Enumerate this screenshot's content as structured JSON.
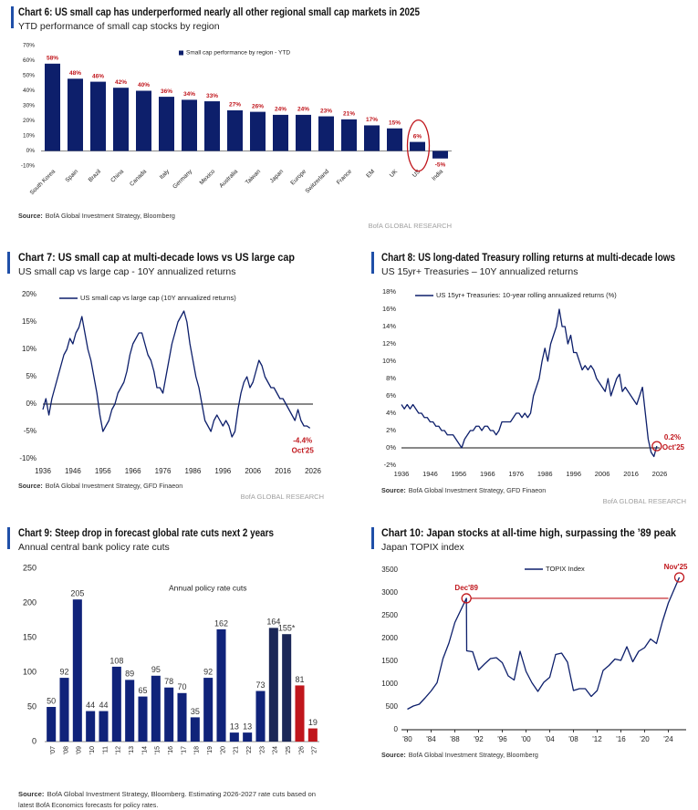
{
  "chart_data": [
    {
      "type": "bar",
      "title": "Chart 6: US small cap has underperformed nearly all other regional small cap markets in 2025",
      "subtitle": "YTD performance of small cap stocks by region",
      "categories": [
        "South Korea",
        "Spain",
        "Brazil",
        "China",
        "Canada",
        "Italy",
        "Germany",
        "Mexico",
        "Australia",
        "Taiwan",
        "Japan",
        "Europe",
        "Switzerland",
        "France",
        "EM",
        "UK",
        "US",
        "India"
      ],
      "series": [
        {
          "name": "Small cap performance by region - YTD",
          "color": "#0d1f6b",
          "label_color": "#c0161c",
          "values": [
            58,
            48,
            46,
            42,
            40,
            36,
            34,
            33,
            27,
            26,
            24,
            24,
            23,
            21,
            17,
            15,
            6,
            -5
          ],
          "value_labels": [
            "58%",
            "48%",
            "46%",
            "42%",
            "40%",
            "36%",
            "34%",
            "33%",
            "27%",
            "26%",
            "24%",
            "24%",
            "23%",
            "21%",
            "17%",
            "15%",
            "6%",
            "-5%"
          ]
        }
      ],
      "ylim": [
        -10,
        70
      ],
      "yticks": [
        {
          "value": -10,
          "label": "-10%"
        },
        {
          "value": 0,
          "label": "0%"
        },
        {
          "value": 10,
          "label": "10%"
        },
        {
          "value": 20,
          "label": "20%"
        },
        {
          "value": 30,
          "label": "30%"
        },
        {
          "value": 40,
          "label": "40%"
        },
        {
          "value": 50,
          "label": "50%"
        },
        {
          "value": 60,
          "label": "60%"
        },
        {
          "value": 70,
          "label": "70%"
        }
      ],
      "source_label": "Source:",
      "source": [
        "BofA Global Investment Strategy, Bloomberg"
      ],
      "footer": "BofA GLOBAL RESEARCH"
    },
    {
      "type": "line",
      "title": "Chart 7: US small cap at multi-decade lows vs US large cap",
      "subtitle": "US small cap vs large cap - 10Y annualized returns",
      "x": [
        1936,
        1937,
        1938,
        1939,
        1940,
        1941,
        1942,
        1943,
        1944,
        1945,
        1946,
        1947,
        1948,
        1949,
        1950,
        1951,
        1952,
        1953,
        1954,
        1955,
        1956,
        1957,
        1958,
        1959,
        1960,
        1961,
        1962,
        1963,
        1964,
        1965,
        1966,
        1967,
        1968,
        1969,
        1970,
        1971,
        1972,
        1973,
        1974,
        1975,
        1976,
        1977,
        1978,
        1979,
        1980,
        1981,
        1982,
        1983,
        1984,
        1985,
        1986,
        1987,
        1988,
        1989,
        1990,
        1991,
        1992,
        1993,
        1994,
        1995,
        1996,
        1997,
        1998,
        1999,
        2000,
        2001,
        2002,
        2003,
        2004,
        2005,
        2006,
        2007,
        2008,
        2009,
        2010,
        2011,
        2012,
        2013,
        2014,
        2015,
        2016,
        2017,
        2018,
        2019,
        2020,
        2021,
        2022,
        2023,
        2024,
        2025
      ],
      "series": [
        {
          "name": "US small cap vs large cap (10Y annualized returns)",
          "color": "#0d1f6b",
          "values": [
            -1,
            1,
            -2,
            1,
            3,
            5,
            7,
            9,
            10,
            12,
            11,
            13,
            14,
            16,
            13,
            10,
            8,
            5,
            2,
            -2,
            -5,
            -4,
            -3,
            -1,
            0,
            2,
            3,
            4,
            6,
            9,
            11,
            12,
            13,
            13,
            11,
            9,
            8,
            6,
            3,
            3,
            2,
            5,
            8,
            11,
            13,
            15,
            16,
            17,
            15,
            11,
            8,
            5,
            3,
            0,
            -3,
            -4,
            -5,
            -3,
            -2,
            -3,
            -4,
            -3,
            -4,
            -6,
            -5,
            -1,
            2,
            4,
            5,
            3,
            4,
            6,
            8,
            7,
            5,
            4,
            3,
            3,
            2,
            1,
            1,
            0,
            -1,
            -2,
            -3,
            -1,
            -3,
            -4,
            -4,
            -4.4
          ]
        }
      ],
      "xlim": [
        1936,
        2026
      ],
      "xticks": [
        1936,
        1946,
        1956,
        1966,
        1976,
        1986,
        1996,
        2006,
        2016,
        2026
      ],
      "ylim": [
        -10,
        20
      ],
      "yticks": [
        {
          "value": -10,
          "label": "-10%"
        },
        {
          "value": -5,
          "label": "-5%"
        },
        {
          "value": 0,
          "label": "0%"
        },
        {
          "value": 5,
          "label": "5%"
        },
        {
          "value": 10,
          "label": "10%"
        },
        {
          "value": 15,
          "label": "15%"
        },
        {
          "value": 20,
          "label": "20%"
        }
      ],
      "annotations": [
        "-4.4%",
        "Oct'25"
      ],
      "annotation_color": "#c0161c",
      "source_label": "Source:",
      "source": [
        "BofA Global Investment Strategy, GFD Finaeon"
      ],
      "footer": "BofA GLOBAL RESEARCH"
    },
    {
      "type": "line",
      "title": "Chart 8: US long-dated Treasury rolling returns at multi-decade lows",
      "subtitle": "US 15yr+ Treasuries – 10Y annualized returns",
      "x": [
        1936,
        1937,
        1938,
        1939,
        1940,
        1941,
        1942,
        1943,
        1944,
        1945,
        1946,
        1947,
        1948,
        1949,
        1950,
        1951,
        1952,
        1953,
        1954,
        1955,
        1956,
        1957,
        1958,
        1959,
        1960,
        1961,
        1962,
        1963,
        1964,
        1965,
        1966,
        1967,
        1968,
        1969,
        1970,
        1971,
        1972,
        1973,
        1974,
        1975,
        1976,
        1977,
        1978,
        1979,
        1980,
        1981,
        1982,
        1983,
        1984,
        1985,
        1986,
        1987,
        1988,
        1989,
        1990,
        1991,
        1992,
        1993,
        1994,
        1995,
        1996,
        1997,
        1998,
        1999,
        2000,
        2001,
        2002,
        2003,
        2004,
        2005,
        2006,
        2007,
        2008,
        2009,
        2010,
        2011,
        2012,
        2013,
        2014,
        2015,
        2016,
        2017,
        2018,
        2019,
        2020,
        2021,
        2022,
        2023,
        2024,
        2025
      ],
      "series": [
        {
          "name": "US 15yr+ Treasuries: 10-year rolling annualized returns (%)",
          "color": "#0d1f6b",
          "values": [
            5,
            4.5,
            5,
            4.5,
            5,
            4.5,
            4,
            4,
            3.5,
            3.5,
            3,
            3,
            2.5,
            2.5,
            2,
            2,
            1.5,
            1.5,
            1.5,
            1,
            0.5,
            0,
            1,
            1.5,
            2,
            2,
            2.5,
            2.5,
            2,
            2.5,
            2.5,
            2,
            2,
            1.5,
            2,
            3,
            3,
            3,
            3,
            3.5,
            4,
            4,
            3.5,
            4,
            3.5,
            4,
            6,
            7,
            8,
            10,
            11.5,
            10,
            12,
            13,
            14,
            16,
            14,
            14,
            12,
            13,
            11,
            11,
            10,
            9,
            9.5,
            9,
            9.5,
            9,
            8,
            7.5,
            7,
            6.5,
            8,
            6,
            7,
            8,
            8.5,
            6.5,
            7,
            6.5,
            6,
            5.5,
            5,
            6,
            7,
            4,
            1,
            -0.5,
            -1,
            0.2
          ]
        }
      ],
      "xlim": [
        1936,
        2026
      ],
      "xticks": [
        1936,
        1946,
        1956,
        1966,
        1976,
        1986,
        1996,
        2006,
        2016,
        2026
      ],
      "ylim": [
        -2,
        18
      ],
      "yticks": [
        {
          "value": -2,
          "label": "-2%"
        },
        {
          "value": 0,
          "label": "0%"
        },
        {
          "value": 2,
          "label": "2%"
        },
        {
          "value": 4,
          "label": "4%"
        },
        {
          "value": 6,
          "label": "6%"
        },
        {
          "value": 8,
          "label": "8%"
        },
        {
          "value": 10,
          "label": "10%"
        },
        {
          "value": 12,
          "label": "12%"
        },
        {
          "value": 14,
          "label": "14%"
        },
        {
          "value": 16,
          "label": "16%"
        },
        {
          "value": 18,
          "label": "18%"
        }
      ],
      "annotations": [
        "0.2%",
        "Oct'25"
      ],
      "annotation_color": "#c0161c",
      "source_label": "Source:",
      "source": [
        "BofA Global Investment Strategy, GFD Finaeon"
      ],
      "footer": "BofA GLOBAL RESEARCH"
    },
    {
      "type": "bar",
      "title": "Chart 9: Steep drop in forecast global rate cuts next 2 years",
      "subtitle": "Annual central bank policy rate cuts",
      "categories": [
        "'07",
        "'08",
        "'09",
        "'10",
        "'11",
        "'12",
        "'13",
        "'14",
        "'15",
        "'16",
        "'17",
        "'18",
        "'19",
        "'20",
        "'21",
        "'22",
        "'23",
        "'24",
        "'25",
        "'26",
        "'27"
      ],
      "series": [
        {
          "name": "Annual policy rate cuts",
          "colors": [
            "#10237a",
            "#10237a",
            "#10237a",
            "#10237a",
            "#10237a",
            "#10237a",
            "#10237a",
            "#10237a",
            "#10237a",
            "#10237a",
            "#10237a",
            "#10237a",
            "#10237a",
            "#10237a",
            "#10237a",
            "#10237a",
            "#10237a",
            "#1b2757",
            "#1b2757",
            "#c0161c",
            "#c0161c"
          ],
          "label_color": "#333333",
          "values": [
            50,
            92,
            205,
            44,
            44,
            108,
            89,
            65,
            95,
            78,
            70,
            35,
            92,
            162,
            13,
            13,
            73,
            164,
            155,
            81,
            19
          ],
          "value_labels": [
            "50",
            "92",
            "205",
            "44",
            "44",
            "108",
            "89",
            "65",
            "95",
            "78",
            "70",
            "35",
            "92",
            "162",
            "13",
            "13",
            "73",
            "164",
            "155*",
            "81",
            "19"
          ]
        }
      ],
      "ylim": [
        0,
        250
      ],
      "yticks": [
        0,
        50,
        100,
        150,
        200,
        250
      ],
      "source_label": "Source:",
      "source": [
        "BofA Global Investment Strategy, Bloomberg. Estimating 2026-2027 rate cuts based on",
        "latest BofA Economics forecasts for policy rates."
      ]
    },
    {
      "type": "line",
      "title": "Chart 10: Japan stocks at all-time high, surpassing the ’89 peak",
      "subtitle": "Japan TOPIX index",
      "x": [
        1980,
        1981,
        1982,
        1983,
        1984,
        1985,
        1986,
        1987,
        1988,
        1989.95,
        1990,
        1991,
        1992,
        1993,
        1994,
        1995,
        1996,
        1997,
        1998,
        1999,
        2000,
        2001,
        2002,
        2003,
        2004,
        2005,
        2006,
        2007,
        2008,
        2009,
        2010,
        2011,
        2012,
        2013,
        2014,
        2015,
        2016,
        2017,
        2018,
        2019,
        2020,
        2021,
        2022,
        2023,
        2024,
        2025.85
      ],
      "series": [
        {
          "name": "TOPIX Index",
          "color": "#0d1f6b",
          "values": [
            450,
            520,
            560,
            700,
            850,
            1030,
            1560,
            1900,
            2350,
            2881,
            1730,
            1710,
            1310,
            1440,
            1560,
            1580,
            1470,
            1180,
            1090,
            1720,
            1280,
            1030,
            840,
            1040,
            1150,
            1650,
            1680,
            1480,
            860,
            900,
            900,
            730,
            860,
            1300,
            1410,
            1550,
            1520,
            1820,
            1490,
            1720,
            1800,
            1990,
            1890,
            2370,
            2780,
            3340
          ]
        }
      ],
      "xlim": [
        1979,
        2027
      ],
      "xticks": [
        {
          "value": 1980,
          "label": "'80"
        },
        {
          "value": 1984,
          "label": "'84"
        },
        {
          "value": 1988,
          "label": "'88"
        },
        {
          "value": 1992,
          "label": "'92"
        },
        {
          "value": 1996,
          "label": "'96"
        },
        {
          "value": 2000,
          "label": "'00"
        },
        {
          "value": 2004,
          "label": "'04"
        },
        {
          "value": 2008,
          "label": "'08"
        },
        {
          "value": 2012,
          "label": "'12"
        },
        {
          "value": 2016,
          "label": "'16"
        },
        {
          "value": 2020,
          "label": "'20"
        },
        {
          "value": 2024,
          "label": "'24"
        }
      ],
      "ylim": [
        0,
        3500
      ],
      "yticks": [
        0,
        500,
        1000,
        1500,
        2000,
        2500,
        3000,
        3500
      ],
      "annotations": [
        "Dec'89",
        "Nov'25"
      ],
      "annotation_color": "#c0161c",
      "source_label": "Source:",
      "source": [
        "BofA Global Investment Strategy, Bloomberg"
      ]
    }
  ]
}
